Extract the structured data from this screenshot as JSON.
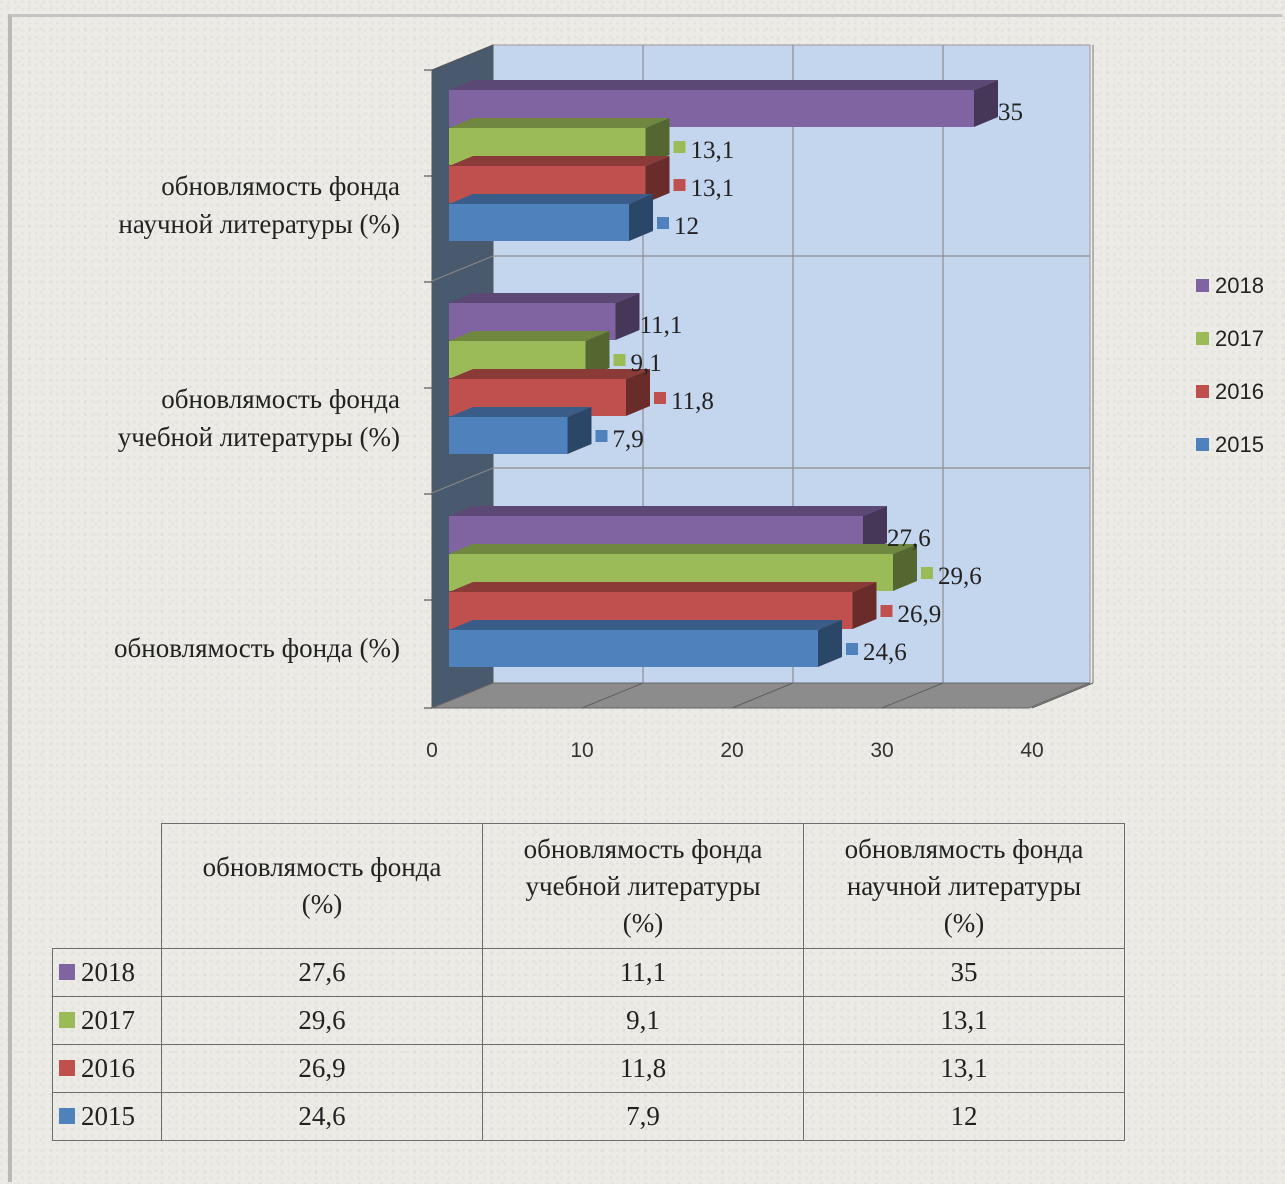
{
  "chart_data": {
    "type": "bar",
    "orientation": "horizontal",
    "three_d": true,
    "categories": [
      "обновлямость фонда научной литературы (%)",
      "обновлямость фонда учебной литературы (%)",
      "обновлямость фонда (%)"
    ],
    "category_lines": [
      [
        "обновлямость фонда",
        "научной литературы (%)"
      ],
      [
        "обновлямость фонда",
        "учебной литературы (%)"
      ],
      [
        "обновлямость фонда (%)"
      ]
    ],
    "series": [
      {
        "name": "2018",
        "color": "#8064a2",
        "values": [
          35,
          11.1,
          27.6
        ],
        "labels": [
          "35",
          "11,1",
          "27,6"
        ]
      },
      {
        "name": "2017",
        "color": "#9bbb59",
        "values": [
          13.1,
          9.1,
          29.6
        ],
        "labels": [
          "13,1",
          "9,1",
          "29,6"
        ]
      },
      {
        "name": "2016",
        "color": "#c0504d",
        "values": [
          13.1,
          11.8,
          26.9
        ],
        "labels": [
          "13,1",
          "11,8",
          "26,9"
        ]
      },
      {
        "name": "2015",
        "color": "#4f81bd",
        "values": [
          12,
          7.9,
          24.6
        ],
        "labels": [
          "12",
          "7,9",
          "24,6"
        ]
      }
    ],
    "xlim": [
      0,
      40
    ],
    "xticks": [
      "0",
      "10",
      "20",
      "30",
      "40"
    ],
    "grid": true,
    "legend": "right"
  },
  "table": {
    "headers": [
      [
        "обновлямость фонда",
        "(%)"
      ],
      [
        "обновлямость фонда",
        "учебной литературы",
        "(%)"
      ],
      [
        "обновлямость фонда",
        "научной литературы",
        "(%)"
      ]
    ],
    "rows": [
      {
        "year": "2018",
        "color": "#8064a2",
        "cells": [
          "27,6",
          "11,1",
          "35"
        ]
      },
      {
        "year": "2017",
        "color": "#9bbb59",
        "cells": [
          "29,6",
          "9,1",
          "13,1"
        ]
      },
      {
        "year": "2016",
        "color": "#c0504d",
        "cells": [
          "26,9",
          "11,8",
          "13,1"
        ]
      },
      {
        "year": "2015",
        "color": "#4f81bd",
        "cells": [
          "24,6",
          "7,9",
          "12"
        ]
      }
    ]
  }
}
